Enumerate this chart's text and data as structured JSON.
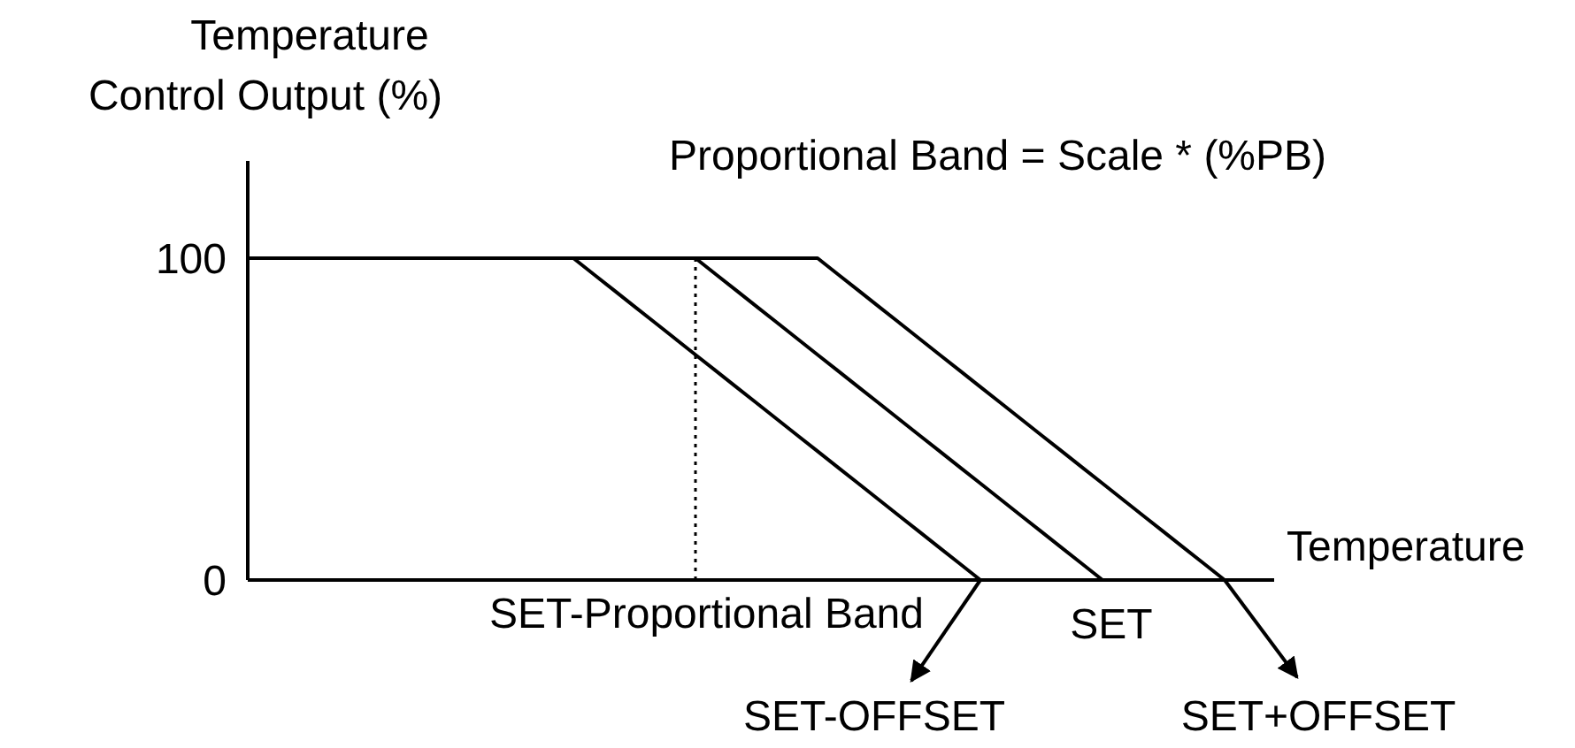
{
  "chart_data": {
    "type": "line",
    "ylabel": "Temperature\nControl Output (%)",
    "xlabel": "Temperature",
    "categories": [
      null,
      null,
      null,
      null,
      null,
      null,
      null,
      null,
      null,
      null,
      null,
      null,
      null,
      null,
      null,
      null,
      null,
      null,
      null,
      null,
      null,
      null,
      null,
      null,
      null,
      null,
      null,
      null,
      null,
      null,
      null,
      null,
      null,
      null,
      null,
      null,
      null,
      null,
      null,
      null,
      null,
      null,
      null,
      null,
      null,
      null,
      null,
      null,
      null,
      null,
      null
    ],
    "ylim": [
      0,
      100
    ],
    "yticks": [
      0,
      100
    ],
    "tick_labels": "y",
    "grid": false,
    "marker": "none",
    "line_style": "solid",
    "series": [
      {
        "color": "#000000",
        "values": [
          100,
          100,
          100,
          100,
          100,
          100,
          100,
          100,
          100,
          100,
          100,
          100,
          100,
          100,
          100,
          100,
          100,
          95,
          90,
          85,
          80,
          75,
          70,
          65,
          60,
          55,
          50,
          45,
          40,
          35,
          30,
          25,
          20,
          15,
          10,
          5,
          0,
          null,
          null,
          null,
          null,
          null,
          null,
          null,
          null,
          null,
          null,
          null,
          null,
          null,
          null
        ]
      },
      {
        "color": "#000000",
        "values": [
          100,
          100,
          100,
          100,
          100,
          100,
          100,
          100,
          100,
          100,
          100,
          100,
          100,
          100,
          100,
          100,
          100,
          100,
          100,
          100,
          100,
          100,
          100,
          95,
          90,
          85,
          80,
          75,
          70,
          65,
          60,
          55,
          50,
          45,
          40,
          35,
          30,
          25,
          20,
          15,
          10,
          5,
          0,
          null,
          null,
          null,
          null,
          null,
          null,
          null,
          null
        ]
      },
      {
        "color": "#000000",
        "values": [
          100,
          100,
          100,
          100,
          100,
          100,
          100,
          100,
          100,
          100,
          100,
          100,
          100,
          100,
          100,
          100,
          100,
          100,
          100,
          100,
          100,
          100,
          100,
          100,
          100,
          100,
          100,
          100,
          100,
          95,
          90,
          85,
          80,
          75,
          70,
          65,
          60,
          55,
          50,
          45,
          40,
          35,
          30,
          25,
          20,
          15,
          10,
          5,
          0,
          null,
          null
        ]
      }
    ],
    "annotations": [
      "Proportional Band = Scale * (%PB)",
      "SET-Proportional Band",
      "SET-OFFSET",
      "SET",
      "SET+OFFSET"
    ]
  }
}
